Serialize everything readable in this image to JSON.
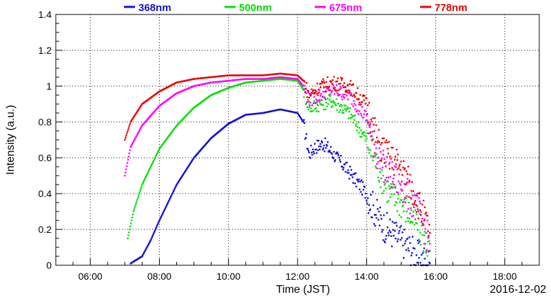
{
  "chart_data": {
    "type": "scatter",
    "title": "",
    "xlabel": "Time (JST)",
    "ylabel": "Intensity (a.u.)",
    "date_label": "2016-12-02",
    "xlim": [
      "05:00",
      "19:00"
    ],
    "ylim": [
      0,
      1.4
    ],
    "grid": true,
    "legend_position": "top",
    "x_ticks": [
      "06:00",
      "08:00",
      "10:00",
      "12:00",
      "14:00",
      "16:00",
      "18:00"
    ],
    "y_ticks": [
      "0",
      "0.2",
      "0.4",
      "0.6",
      "0.8",
      "1",
      "1.2",
      "1.4"
    ],
    "x_unit": "time (HH:MM)",
    "series": [
      {
        "name": "368nm",
        "color": "#1010d8",
        "points": [
          [
            "07:10",
            0.01
          ],
          [
            "07:30",
            0.05
          ],
          [
            "07:45",
            0.14
          ],
          [
            "08:00",
            0.25
          ],
          [
            "08:30",
            0.45
          ],
          [
            "09:00",
            0.6
          ],
          [
            "09:30",
            0.71
          ],
          [
            "10:00",
            0.79
          ],
          [
            "10:30",
            0.84
          ],
          [
            "11:00",
            0.85
          ],
          [
            "11:30",
            0.87
          ],
          [
            "12:00",
            0.85
          ],
          [
            "12:10",
            0.8
          ],
          [
            "12:20",
            0.62
          ],
          [
            "12:30",
            0.66
          ],
          [
            "12:45",
            0.68
          ],
          [
            "13:00",
            0.63
          ],
          [
            "13:30",
            0.52
          ],
          [
            "14:00",
            0.4
          ],
          [
            "14:15",
            0.3
          ],
          [
            "14:30",
            0.22
          ],
          [
            "14:45",
            0.18
          ],
          [
            "15:00",
            0.14
          ],
          [
            "15:30",
            0.05
          ],
          [
            "15:50",
            0.01
          ]
        ]
      },
      {
        "name": "500nm",
        "color": "#00e000",
        "points": [
          [
            "07:05",
            0.15
          ],
          [
            "07:15",
            0.3
          ],
          [
            "07:30",
            0.45
          ],
          [
            "08:00",
            0.65
          ],
          [
            "08:30",
            0.78
          ],
          [
            "09:00",
            0.88
          ],
          [
            "09:30",
            0.95
          ],
          [
            "10:00",
            0.99
          ],
          [
            "10:30",
            1.02
          ],
          [
            "11:00",
            1.03
          ],
          [
            "11:30",
            1.04
          ],
          [
            "12:00",
            1.03
          ],
          [
            "12:10",
            0.98
          ],
          [
            "12:20",
            0.88
          ],
          [
            "12:40",
            0.9
          ],
          [
            "13:00",
            0.92
          ],
          [
            "13:30",
            0.85
          ],
          [
            "14:00",
            0.7
          ],
          [
            "14:20",
            0.55
          ],
          [
            "14:40",
            0.4
          ],
          [
            "15:00",
            0.35
          ],
          [
            "15:30",
            0.22
          ],
          [
            "15:50",
            0.08
          ]
        ]
      },
      {
        "name": "675nm",
        "color": "#ff00ff",
        "points": [
          [
            "07:00",
            0.5
          ],
          [
            "07:10",
            0.66
          ],
          [
            "07:30",
            0.78
          ],
          [
            "08:00",
            0.89
          ],
          [
            "08:30",
            0.96
          ],
          [
            "09:00",
            1.0
          ],
          [
            "09:30",
            1.02
          ],
          [
            "10:00",
            1.03
          ],
          [
            "10:30",
            1.04
          ],
          [
            "11:00",
            1.04
          ],
          [
            "11:30",
            1.05
          ],
          [
            "12:00",
            1.04
          ],
          [
            "12:10",
            1.0
          ],
          [
            "12:20",
            0.92
          ],
          [
            "12:40",
            0.95
          ],
          [
            "13:00",
            0.98
          ],
          [
            "13:30",
            0.95
          ],
          [
            "14:00",
            0.82
          ],
          [
            "14:20",
            0.6
          ],
          [
            "14:40",
            0.5
          ],
          [
            "15:00",
            0.45
          ],
          [
            "15:30",
            0.3
          ],
          [
            "15:50",
            0.12
          ]
        ]
      },
      {
        "name": "778nm",
        "color": "#ee0000",
        "points": [
          [
            "07:00",
            0.7
          ],
          [
            "07:10",
            0.8
          ],
          [
            "07:30",
            0.9
          ],
          [
            "08:00",
            0.97
          ],
          [
            "08:30",
            1.02
          ],
          [
            "09:00",
            1.04
          ],
          [
            "09:30",
            1.05
          ],
          [
            "10:00",
            1.06
          ],
          [
            "10:30",
            1.06
          ],
          [
            "11:00",
            1.06
          ],
          [
            "11:30",
            1.07
          ],
          [
            "12:00",
            1.06
          ],
          [
            "12:10",
            1.03
          ],
          [
            "12:20",
            0.95
          ],
          [
            "12:40",
            1.0
          ],
          [
            "13:00",
            1.02
          ],
          [
            "13:30",
            1.0
          ],
          [
            "14:00",
            0.9
          ],
          [
            "14:20",
            0.68
          ],
          [
            "14:40",
            0.6
          ],
          [
            "15:00",
            0.55
          ],
          [
            "15:30",
            0.35
          ],
          [
            "15:50",
            0.18
          ]
        ]
      }
    ]
  }
}
